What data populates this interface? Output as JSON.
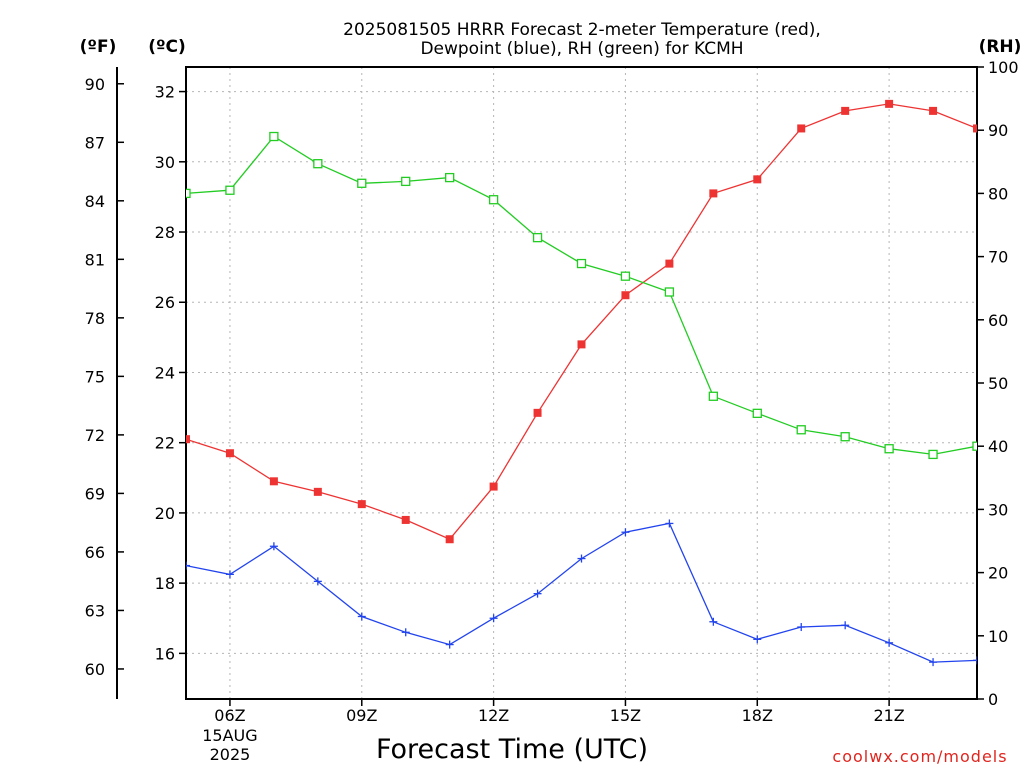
{
  "chart_data": {
    "type": "line",
    "title_lines": [
      "2025081505 HRRR Forecast 2-meter Temperature (red),",
      "Dewpoint (blue), RH (green) for KCMH"
    ],
    "xlabel": "Forecast Time (UTC)",
    "credit": "coolwx.com/models",
    "x_hours": [
      5,
      6,
      7,
      8,
      9,
      10,
      11,
      12,
      13,
      14,
      15,
      16,
      17,
      18,
      19,
      20,
      21,
      22,
      23
    ],
    "x_range": [
      5,
      23
    ],
    "x_ticks": [
      {
        "hour": 6,
        "label": "06Z",
        "sub": [
          "15AUG",
          "2025"
        ]
      },
      {
        "hour": 9,
        "label": "09Z",
        "sub": []
      },
      {
        "hour": 12,
        "label": "12Z",
        "sub": []
      },
      {
        "hour": 15,
        "label": "15Z",
        "sub": []
      },
      {
        "hour": 18,
        "label": "18Z",
        "sub": []
      },
      {
        "hour": 21,
        "label": "21Z",
        "sub": []
      }
    ],
    "y_celsius": {
      "unit": "(ºC)",
      "range": [
        14.7,
        32.7
      ],
      "ticks": [
        16,
        18,
        20,
        22,
        24,
        26,
        28,
        30,
        32
      ]
    },
    "y_fahrenheit": {
      "unit": "(ºF)",
      "ticks": [
        60,
        63,
        66,
        69,
        72,
        75,
        78,
        81,
        84,
        87,
        90
      ]
    },
    "y_rh": {
      "unit": "(RH)",
      "range": [
        0,
        100
      ],
      "ticks": [
        0,
        10,
        20,
        30,
        40,
        50,
        60,
        70,
        80,
        90,
        100
      ]
    },
    "grid": true,
    "series": [
      {
        "key": "temperature",
        "axis": "celsius",
        "color": "#ee3333",
        "marker": "filled-square",
        "values": [
          22.1,
          21.7,
          20.9,
          20.6,
          20.25,
          19.8,
          19.25,
          20.75,
          22.85,
          24.8,
          26.2,
          27.1,
          29.1,
          29.5,
          30.95,
          31.45,
          31.65,
          31.45,
          30.95
        ]
      },
      {
        "key": "dewpoint",
        "axis": "celsius",
        "color": "#2244ee",
        "marker": "plus",
        "values": [
          18.5,
          18.25,
          19.05,
          18.05,
          17.05,
          16.6,
          16.25,
          17,
          17.7,
          18.7,
          19.45,
          19.7,
          16.9,
          16.4,
          16.75,
          16.8,
          16.3,
          15.75,
          15.8
        ]
      },
      {
        "key": "rh",
        "axis": "rh",
        "color": "#22cc22",
        "marker": "open-square",
        "values": [
          80,
          80.5,
          89,
          84.7,
          81.6,
          81.9,
          82.5,
          79,
          73,
          68.9,
          66.9,
          64.4,
          47.9,
          45.2,
          42.6,
          41.5,
          39.6,
          38.7,
          40
        ]
      }
    ]
  }
}
